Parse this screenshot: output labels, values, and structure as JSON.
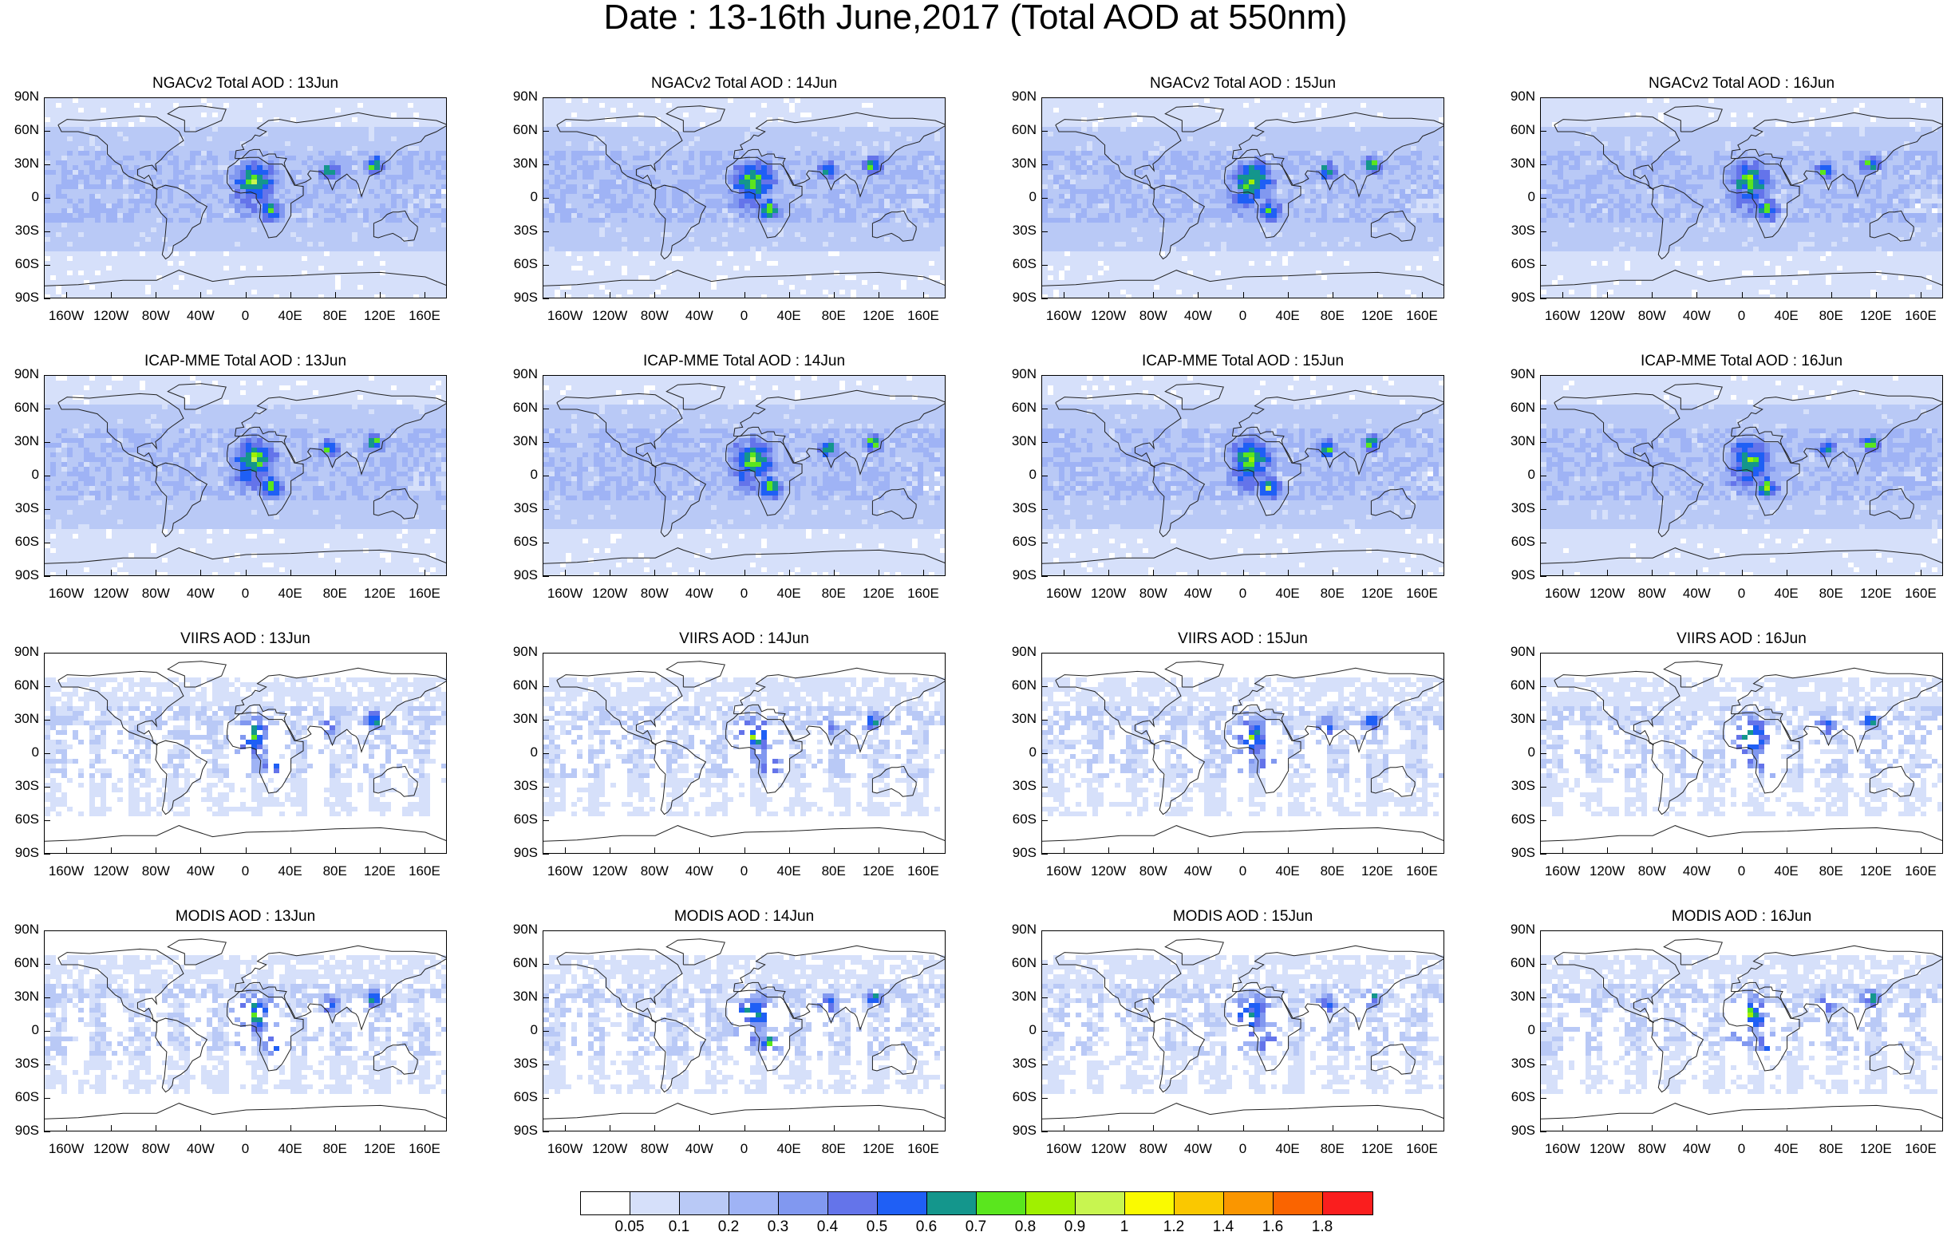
{
  "title": "Date : 13-16th June,2017 (Total AOD at 550nm)",
  "lat_labels": [
    "90N",
    "60N",
    "30N",
    "0",
    "30S",
    "60S",
    "90S"
  ],
  "lon_labels": [
    "160W",
    "120W",
    "80W",
    "40W",
    "0",
    "40E",
    "80E",
    "120E",
    "160E"
  ],
  "panels": [
    {
      "title": "NGACv2 Total AOD : 13Jun",
      "kind": "model",
      "day": 13
    },
    {
      "title": "NGACv2 Total AOD : 14Jun",
      "kind": "model",
      "day": 14
    },
    {
      "title": "NGACv2 Total AOD : 15Jun",
      "kind": "model",
      "day": 15
    },
    {
      "title": "NGACv2 Total AOD : 16Jun",
      "kind": "model",
      "day": 16
    },
    {
      "title": "ICAP-MME Total AOD : 13Jun",
      "kind": "model",
      "day": 13
    },
    {
      "title": "ICAP-MME Total AOD : 14Jun",
      "kind": "model",
      "day": 14
    },
    {
      "title": "ICAP-MME Total AOD : 15Jun",
      "kind": "model",
      "day": 15
    },
    {
      "title": "ICAP-MME Total AOD : 16Jun",
      "kind": "model",
      "day": 16
    },
    {
      "title": "VIIRS AOD : 13Jun",
      "kind": "satellite",
      "day": 13
    },
    {
      "title": "VIIRS AOD : 14Jun",
      "kind": "satellite",
      "day": 14
    },
    {
      "title": "VIIRS AOD : 15Jun",
      "kind": "satellite",
      "day": 15
    },
    {
      "title": "VIIRS AOD : 16Jun",
      "kind": "satellite",
      "day": 16
    },
    {
      "title": "MODIS AOD : 13Jun",
      "kind": "satellite",
      "day": 13
    },
    {
      "title": "MODIS AOD : 14Jun",
      "kind": "satellite",
      "day": 14
    },
    {
      "title": "MODIS AOD : 15Jun",
      "kind": "satellite",
      "day": 15
    },
    {
      "title": "MODIS AOD : 16Jun",
      "kind": "satellite",
      "day": 16
    }
  ],
  "colorbar": {
    "labels": [
      "0.05",
      "0.1",
      "0.2",
      "0.3",
      "0.4",
      "0.5",
      "0.6",
      "0.7",
      "0.8",
      "0.9",
      "1",
      "1.2",
      "1.4",
      "1.6",
      "1.8"
    ],
    "colors": [
      "#ffffff",
      "#d6e0fa",
      "#b9c9f6",
      "#9fb3f5",
      "#8198f0",
      "#6474ea",
      "#1f5ff5",
      "#14968c",
      "#5ae61e",
      "#a0f000",
      "#c8f550",
      "#fafa00",
      "#fac800",
      "#fa9600",
      "#fa6400",
      "#fa1e1e"
    ]
  }
}
